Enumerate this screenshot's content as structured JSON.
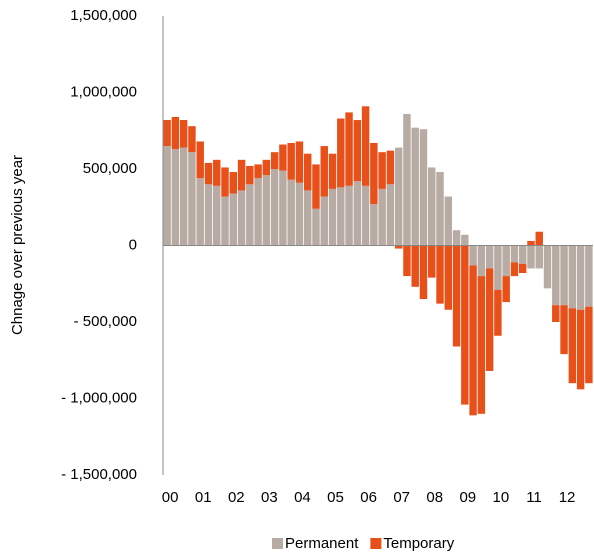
{
  "chart_data": {
    "type": "stacked_bar",
    "y_label": "Chnage over previous year",
    "categories": [
      "00",
      null,
      null,
      null,
      "01",
      null,
      null,
      null,
      "02",
      null,
      null,
      null,
      "03",
      null,
      null,
      null,
      "04",
      null,
      null,
      null,
      "05",
      null,
      null,
      null,
      "06",
      null,
      null,
      null,
      "07",
      null,
      null,
      null,
      "08",
      null,
      null,
      null,
      "09",
      null,
      null,
      null,
      "10",
      null,
      null,
      null,
      "11",
      null,
      null,
      null,
      "12",
      null,
      null,
      null
    ],
    "series": [
      {
        "name": "Permanent",
        "color": "#b7aba4",
        "values": [
          650000,
          630000,
          640000,
          610000,
          440000,
          400000,
          390000,
          320000,
          340000,
          360000,
          400000,
          440000,
          460000,
          500000,
          490000,
          430000,
          410000,
          360000,
          240000,
          320000,
          370000,
          380000,
          390000,
          420000,
          390000,
          270000,
          370000,
          400000,
          640000,
          860000,
          770000,
          760000,
          510000,
          480000,
          320000,
          100000,
          70000,
          -130000,
          -200000,
          -150000,
          -290000,
          -200000,
          -110000,
          -120000,
          -150000,
          -150000,
          -280000,
          -390000,
          -390000,
          -410000,
          -420000,
          -400000
        ]
      },
      {
        "name": "Temporary",
        "color": "#e8501a",
        "values": [
          170000,
          210000,
          180000,
          170000,
          240000,
          140000,
          170000,
          190000,
          140000,
          200000,
          120000,
          90000,
          100000,
          110000,
          170000,
          240000,
          270000,
          240000,
          290000,
          330000,
          230000,
          450000,
          480000,
          400000,
          520000,
          400000,
          240000,
          220000,
          -20000,
          -200000,
          -270000,
          -350000,
          -210000,
          -380000,
          -420000,
          -660000,
          -1040000,
          -980000,
          -900000,
          -670000,
          -300000,
          -170000,
          -90000,
          -60000,
          30000,
          90000,
          0,
          -110000,
          -320000,
          -490000,
          -520000,
          -500000
        ]
      }
    ],
    "ylim": [
      -1500000,
      1500000
    ],
    "yticks": [
      {
        "value": -1500000,
        "label": "- 1,500,000"
      },
      {
        "value": -1000000,
        "label": "- 1,000,000"
      },
      {
        "value": -500000,
        "label": "- 500,000"
      },
      0,
      {
        "value": 500000,
        "label": "500,000"
      },
      {
        "value": 1000000,
        "label": "1,000,000"
      },
      {
        "value": 1500000,
        "label": "1,500,000"
      }
    ],
    "negative_tick_color": "#e00000",
    "legend": "bottom"
  }
}
